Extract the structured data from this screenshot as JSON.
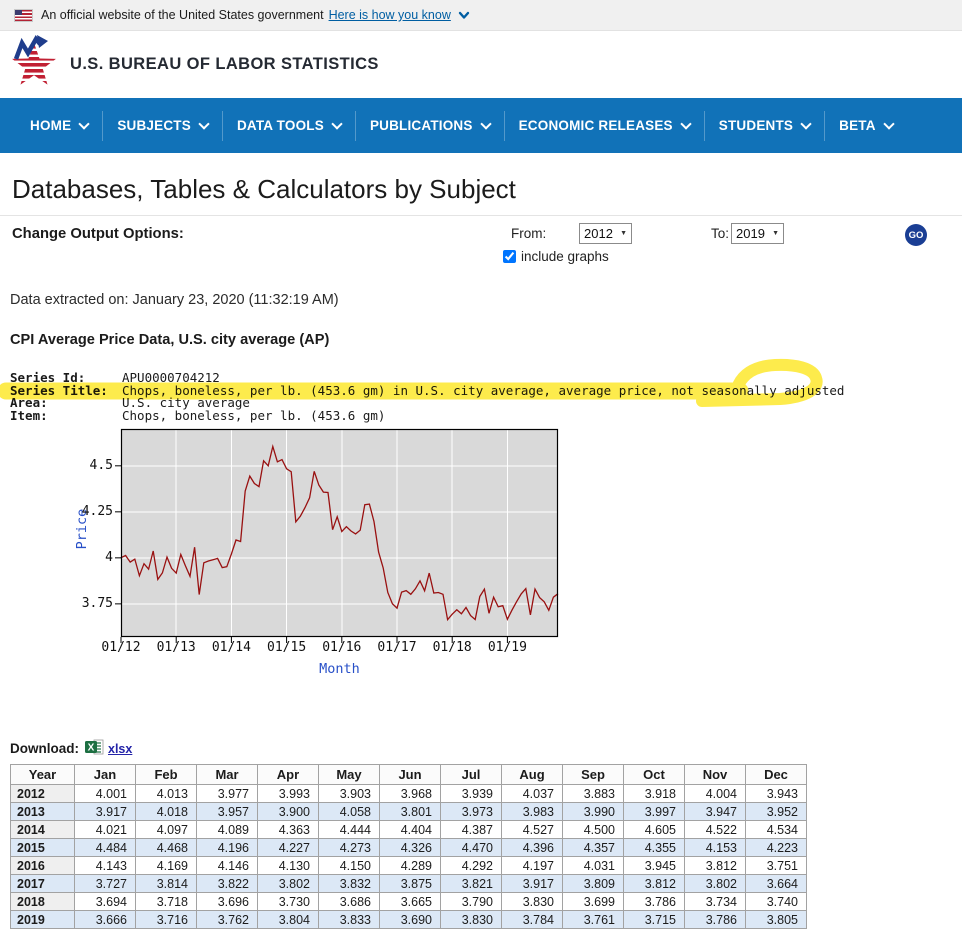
{
  "banner": {
    "text": "An official website of the United States government",
    "link": "Here is how you know"
  },
  "header": {
    "agency": "U.S. BUREAU OF LABOR STATISTICS"
  },
  "nav": {
    "items": [
      "HOME",
      "SUBJECTS",
      "DATA TOOLS",
      "PUBLICATIONS",
      "ECONOMIC RELEASES",
      "STUDENTS",
      "BETA"
    ]
  },
  "page": {
    "title": "Databases, Tables & Calculators by Subject"
  },
  "options": {
    "label": "Change Output Options:",
    "from_label": "From:",
    "from_value": "2012",
    "to_label": "To:",
    "to_value": "2019",
    "include_graphs_label": "include graphs",
    "include_graphs_checked": true,
    "go_label": "GO"
  },
  "extracted": {
    "text": "Data extracted on: January 23, 2020 (11:32:19 AM)"
  },
  "section": {
    "heading": "CPI Average Price Data, U.S. city average (AP)"
  },
  "series_info": {
    "rows": [
      {
        "label": "Series Id:",
        "value": "APU0000704212",
        "highlighted": false
      },
      {
        "label": "Series Title:",
        "value": "Chops, boneless, per lb. (453.6 gm) in U.S. city average, average price, not seasonally adjusted",
        "highlighted": true
      },
      {
        "label": "Area:",
        "value": "U.S. city average",
        "highlighted": false
      },
      {
        "label": "Item:",
        "value": "Chops, boneless, per lb. (453.6 gm)",
        "highlighted": false
      }
    ]
  },
  "download": {
    "label": "Download:",
    "link": "xlsx"
  },
  "table": {
    "headers": [
      "Year",
      "Jan",
      "Feb",
      "Mar",
      "Apr",
      "May",
      "Jun",
      "Jul",
      "Aug",
      "Sep",
      "Oct",
      "Nov",
      "Dec"
    ],
    "rows": [
      {
        "year": "2012",
        "values": [
          "4.001",
          "4.013",
          "3.977",
          "3.993",
          "3.903",
          "3.968",
          "3.939",
          "4.037",
          "3.883",
          "3.918",
          "4.004",
          "3.943"
        ]
      },
      {
        "year": "2013",
        "values": [
          "3.917",
          "4.018",
          "3.957",
          "3.900",
          "4.058",
          "3.801",
          "3.973",
          "3.983",
          "3.990",
          "3.997",
          "3.947",
          "3.952"
        ]
      },
      {
        "year": "2014",
        "values": [
          "4.021",
          "4.097",
          "4.089",
          "4.363",
          "4.444",
          "4.404",
          "4.387",
          "4.527",
          "4.500",
          "4.605",
          "4.522",
          "4.534"
        ]
      },
      {
        "year": "2015",
        "values": [
          "4.484",
          "4.468",
          "4.196",
          "4.227",
          "4.273",
          "4.326",
          "4.470",
          "4.396",
          "4.357",
          "4.355",
          "4.153",
          "4.223"
        ]
      },
      {
        "year": "2016",
        "values": [
          "4.143",
          "4.169",
          "4.146",
          "4.130",
          "4.150",
          "4.289",
          "4.292",
          "4.197",
          "4.031",
          "3.945",
          "3.812",
          "3.751"
        ]
      },
      {
        "year": "2017",
        "values": [
          "3.727",
          "3.814",
          "3.822",
          "3.802",
          "3.832",
          "3.875",
          "3.821",
          "3.917",
          "3.809",
          "3.812",
          "3.802",
          "3.664"
        ]
      },
      {
        "year": "2018",
        "values": [
          "3.694",
          "3.718",
          "3.696",
          "3.730",
          "3.686",
          "3.665",
          "3.790",
          "3.830",
          "3.699",
          "3.786",
          "3.734",
          "3.740"
        ]
      },
      {
        "year": "2019",
        "values": [
          "3.666",
          "3.716",
          "3.762",
          "3.804",
          "3.833",
          "3.690",
          "3.830",
          "3.784",
          "3.761",
          "3.715",
          "3.786",
          "3.805"
        ]
      }
    ]
  },
  "chart_data": {
    "type": "line",
    "title": "",
    "xlabel": "Month",
    "ylabel": "Price",
    "x_start": "01/2012",
    "x_step": "1 month",
    "xtick_labels": [
      "01/12",
      "01/13",
      "01/14",
      "01/15",
      "01/16",
      "01/17",
      "01/18",
      "01/19"
    ],
    "yticks": [
      {
        "v": 4.5,
        "label": "4.5"
      },
      {
        "v": 4.25,
        "label": "4.25"
      },
      {
        "v": 4.0,
        "label": "4"
      },
      {
        "v": 3.75,
        "label": "3.75"
      }
    ],
    "ylim": [
      3.57,
      4.7
    ],
    "grid": true,
    "legend": "none",
    "plot_bg": "#d9d9d9",
    "grid_color": "#ffffff",
    "line_color": "#991111",
    "series": [
      {
        "name": "Average price, Chops, boneless, per lb.",
        "values": [
          4.001,
          4.013,
          3.977,
          3.993,
          3.903,
          3.968,
          3.939,
          4.037,
          3.883,
          3.918,
          4.004,
          3.943,
          3.917,
          4.018,
          3.957,
          3.9,
          4.058,
          3.801,
          3.973,
          3.983,
          3.99,
          3.997,
          3.947,
          3.952,
          4.021,
          4.097,
          4.089,
          4.363,
          4.444,
          4.404,
          4.387,
          4.527,
          4.5,
          4.605,
          4.522,
          4.534,
          4.484,
          4.468,
          4.196,
          4.227,
          4.273,
          4.326,
          4.47,
          4.396,
          4.357,
          4.355,
          4.153,
          4.223,
          4.143,
          4.169,
          4.146,
          4.13,
          4.15,
          4.289,
          4.292,
          4.197,
          4.031,
          3.945,
          3.812,
          3.751,
          3.727,
          3.814,
          3.822,
          3.802,
          3.832,
          3.875,
          3.821,
          3.917,
          3.809,
          3.812,
          3.802,
          3.664,
          3.694,
          3.718,
          3.696,
          3.73,
          3.686,
          3.665,
          3.79,
          3.83,
          3.699,
          3.786,
          3.734,
          3.74,
          3.666,
          3.716,
          3.762,
          3.804,
          3.833,
          3.69,
          3.83,
          3.784,
          3.761,
          3.715,
          3.786,
          3.805
        ]
      }
    ]
  },
  "icons": {
    "select_arrow": "▼"
  },
  "colors": {
    "nav_bg": "#1172b8",
    "banner_link": "#005ea2",
    "go_bg": "#1a3e94",
    "highlight": "#fce300",
    "chart_axis_label": "#2850c8",
    "chart_line": "#991111",
    "table_alt_row": "#dce8f6"
  }
}
